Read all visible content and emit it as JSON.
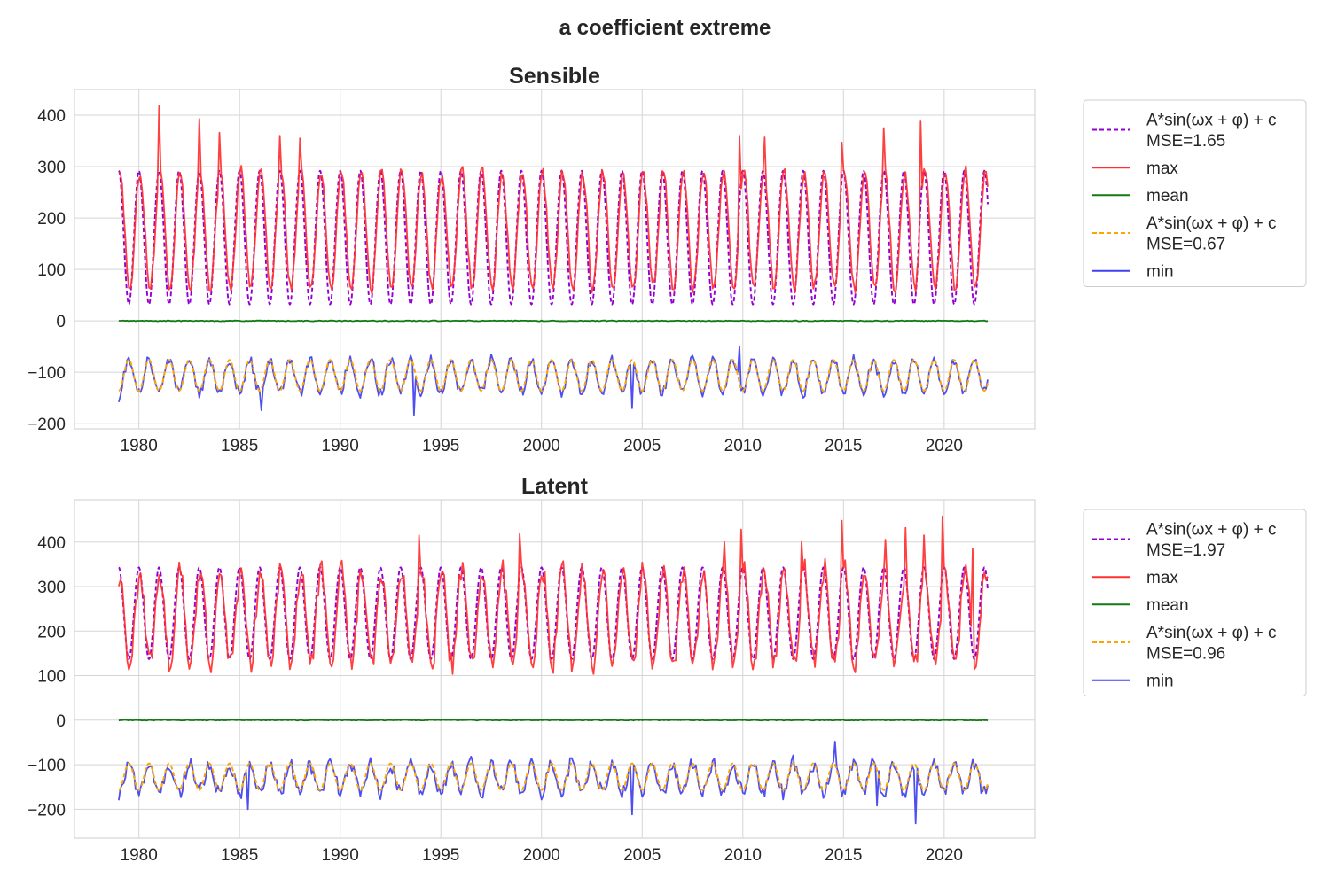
{
  "figure": {
    "title": "a coefficient extreme"
  },
  "colors": {
    "max": "#ff3030",
    "min": "#4040f0",
    "mean": "#127a12",
    "fit_max": "#9400d3",
    "fit_min": "#ffa500",
    "grid": "#d5d5d5",
    "axes_bg": "#ffffff"
  },
  "chart_data": [
    {
      "type": "line",
      "title": "Sensible",
      "xlabel": "",
      "ylabel": "",
      "xlim": [
        1976.8,
        2024.5
      ],
      "ylim": [
        -210,
        450
      ],
      "x_start": 1979.0,
      "x_end": 2022.2,
      "xticks": [
        1980,
        1985,
        1990,
        1995,
        2000,
        2005,
        2010,
        2015,
        2020
      ],
      "xtick_labels": [
        "1980",
        "1985",
        "1990",
        "1995",
        "2000",
        "2005",
        "2010",
        "2015",
        "2020"
      ],
      "yticks": [
        -200,
        -100,
        0,
        100,
        200,
        300,
        400
      ],
      "ytick_labels": [
        "−200",
        "−100",
        "0",
        "100",
        "200",
        "300",
        "400"
      ],
      "grid": true,
      "legend_position": "outside-right",
      "series": [
        {
          "key": "fit_max",
          "type": "fit",
          "amplitude": 130,
          "offset": 162,
          "phase_peak": 0.0,
          "legend": [
            "A*sin(ωx + φ) + c",
            " MSE=1.65"
          ]
        },
        {
          "key": "max",
          "type": "monthly",
          "legend": [
            "max"
          ],
          "amplitude": 115,
          "offset": 177,
          "phase_peak": 0.05,
          "noise": 10,
          "spikes": [
            [
              1981.0,
              418
            ],
            [
              1983.0,
              393
            ],
            [
              1984.0,
              366
            ],
            [
              1987.0,
              360
            ],
            [
              1988.0,
              355
            ],
            [
              2009.8,
              360
            ],
            [
              2011.1,
              357
            ],
            [
              2014.9,
              347
            ],
            [
              2017.0,
              375
            ],
            [
              2018.8,
              388
            ]
          ],
          "summer_peaks": [
            315,
            300,
            330
          ]
        },
        {
          "key": "mean",
          "type": "flat",
          "legend": [
            "mean"
          ],
          "value": 0
        },
        {
          "key": "fit_min",
          "type": "fit",
          "amplitude": 30,
          "offset": -106,
          "phase_peak": 0.5,
          "legend": [
            "A*sin(ωx + φ) + c",
            " MSE=0.67"
          ]
        },
        {
          "key": "min",
          "type": "monthly",
          "legend": [
            "min"
          ],
          "amplitude": 32,
          "offset": -108,
          "phase_peak": 0.5,
          "noise": 9,
          "spikes": [
            [
              1979.0,
              -158
            ],
            [
              1993.7,
              -183
            ],
            [
              1986.1,
              -174
            ],
            [
              2009.8,
              -50
            ],
            [
              2004.5,
              -170
            ]
          ]
        }
      ]
    },
    {
      "type": "line",
      "title": "Latent",
      "xlabel": "",
      "ylabel": "",
      "xlim": [
        1976.8,
        2024.5
      ],
      "ylim": [
        -265,
        495
      ],
      "x_start": 1979.0,
      "x_end": 2022.2,
      "xticks": [
        1980,
        1985,
        1990,
        1995,
        2000,
        2005,
        2010,
        2015,
        2020
      ],
      "xtick_labels": [
        "1980",
        "1985",
        "1990",
        "1995",
        "2000",
        "2005",
        "2010",
        "2015",
        "2020"
      ],
      "yticks": [
        -200,
        -100,
        0,
        100,
        200,
        300,
        400
      ],
      "ytick_labels": [
        "−200",
        "−100",
        "0",
        "100",
        "200",
        "300",
        "400"
      ],
      "grid": true,
      "legend_position": "outside-right",
      "series": [
        {
          "key": "fit_max",
          "type": "fit",
          "amplitude": 103,
          "offset": 240,
          "phase_peak": 0.0,
          "legend": [
            "A*sin(ωx + φ) + c",
            " MSE=1.97"
          ]
        },
        {
          "key": "max",
          "type": "monthly",
          "legend": [
            "max"
          ],
          "amplitude": 105,
          "offset": 230,
          "phase_peak": 0.05,
          "noise": 22,
          "spikes": [
            [
              1993.9,
              415
            ],
            [
              1998.9,
              418
            ],
            [
              2009.1,
              400
            ],
            [
              2009.9,
              428
            ],
            [
              2012.9,
              400
            ],
            [
              2014.9,
              448
            ],
            [
              2017.1,
              405
            ],
            [
              2018.1,
              432
            ],
            [
              2019.0,
              415
            ],
            [
              2019.9,
              458
            ],
            [
              2021.4,
              385
            ]
          ]
        },
        {
          "key": "mean",
          "type": "flat",
          "legend": [
            "mean"
          ],
          "value": 0
        },
        {
          "key": "fit_min",
          "type": "fit",
          "amplitude": 30,
          "offset": -127,
          "phase_peak": 0.5,
          "legend": [
            "A*sin(ωx + φ) + c",
            " MSE=0.96"
          ]
        },
        {
          "key": "min",
          "type": "monthly",
          "legend": [
            "min"
          ],
          "amplitude": 32,
          "offset": -130,
          "phase_peak": 0.5,
          "noise": 14,
          "spikes": [
            [
              1979.0,
              -180
            ],
            [
              1985.4,
              -200
            ],
            [
              2004.5,
              -212
            ],
            [
              2014.6,
              -48
            ],
            [
              2018.6,
              -232
            ],
            [
              2016.7,
              -192
            ]
          ]
        }
      ]
    }
  ]
}
